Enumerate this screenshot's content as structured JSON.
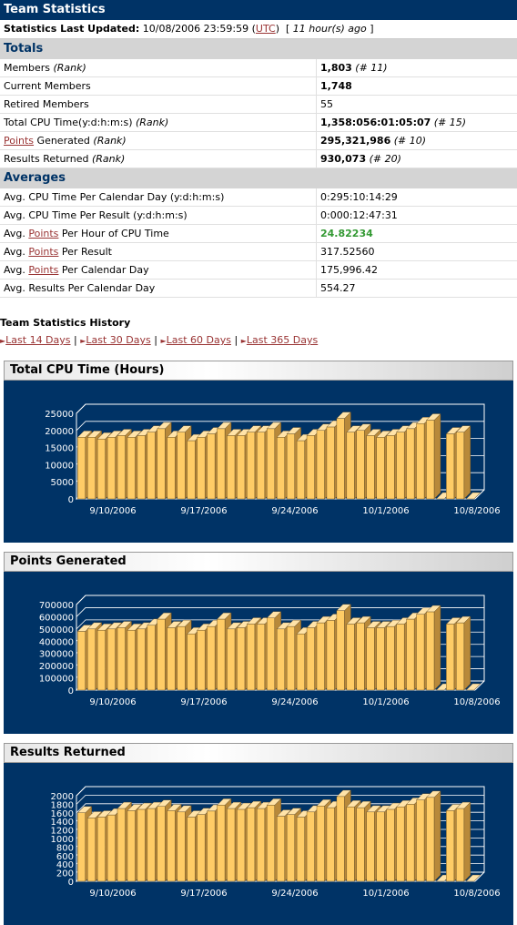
{
  "header": {
    "title": "Team Statistics"
  },
  "updated": {
    "label": "Statistics Last Updated:",
    "datetime": "10/08/2006 23:59:59",
    "tz": "UTC",
    "ago": "11 hour(s) ago"
  },
  "totals": {
    "title": "Totals",
    "rows": [
      {
        "label": "Members",
        "rank_label": "(Rank)",
        "value": "1,803",
        "rank": "(# 11)"
      },
      {
        "label": "Current Members",
        "value": "1,748"
      },
      {
        "label": "Retired Members",
        "value": "55"
      },
      {
        "label": "Total CPU Time(y:d:h:m:s)",
        "rank_label": "(Rank)",
        "value": "1,358:056:01:05:07",
        "rank": "(# 15)"
      },
      {
        "link": "Points",
        "label": "Generated",
        "rank_label": "(Rank)",
        "value": "295,321,986",
        "rank": "(# 10)"
      },
      {
        "label": "Results Returned",
        "rank_label": "(Rank)",
        "value": "930,073",
        "rank": "(# 20)"
      }
    ]
  },
  "averages": {
    "title": "Averages",
    "rows": [
      {
        "label": "Avg. CPU Time Per Calendar Day (y:d:h:m:s)",
        "value": "0:295:10:14:29"
      },
      {
        "label": "Avg. CPU Time Per Result (y:d:h:m:s)",
        "value": "0:000:12:47:31"
      },
      {
        "prefix": "Avg.",
        "link": "Points",
        "label": "Per Hour of CPU Time",
        "value": "24.82234"
      },
      {
        "prefix": "Avg.",
        "link": "Points",
        "label": "Per Result",
        "value": "317.52560"
      },
      {
        "prefix": "Avg.",
        "link": "Points",
        "label": "Per Calendar Day",
        "value": "175,996.42"
      },
      {
        "label": "Avg. Results Per Calendar Day",
        "value": "554.27"
      }
    ]
  },
  "history": {
    "title": "Team Statistics History",
    "links": [
      "Last 14 Days",
      "Last 30 Days",
      "Last 60 Days",
      "Last 365 Days"
    ],
    "separator": "|"
  },
  "colors": {
    "header": "#003366",
    "bar": "#ffcc66",
    "link": "#993333",
    "highlight": "#339933"
  },
  "chart_data": [
    {
      "type": "bar",
      "title": "Total CPU Time (Hours)",
      "xticks": [
        "9/10/2006",
        "9/17/2006",
        "9/24/2006",
        "10/1/2006",
        "10/8/2006"
      ],
      "yticks": [
        "0",
        "5000",
        "10000",
        "15000",
        "20000",
        "25000"
      ],
      "ylim": [
        0,
        25000
      ],
      "values": [
        18000,
        18000,
        17500,
        18000,
        18500,
        18000,
        18500,
        19500,
        20500,
        18000,
        19500,
        17000,
        18000,
        19000,
        20500,
        18500,
        18500,
        19500,
        19500,
        20500,
        18000,
        19000,
        17000,
        18500,
        20000,
        21000,
        23500,
        19500,
        20000,
        18500,
        18000,
        18500,
        19500,
        20500,
        22000,
        23000,
        0,
        19000,
        19500,
        0
      ],
      "grid": true
    },
    {
      "type": "bar",
      "title": "Points Generated",
      "xticks": [
        "9/10/2006",
        "9/17/2006",
        "9/24/2006",
        "10/1/2006",
        "10/8/2006"
      ],
      "yticks": [
        "0",
        "100000",
        "200000",
        "300000",
        "400000",
        "500000",
        "600000",
        "700000"
      ],
      "ylim": [
        0,
        700000
      ],
      "values": [
        480000,
        500000,
        490000,
        500000,
        510000,
        490000,
        500000,
        530000,
        580000,
        510000,
        520000,
        460000,
        490000,
        520000,
        580000,
        500000,
        510000,
        540000,
        540000,
        590000,
        500000,
        520000,
        460000,
        510000,
        550000,
        570000,
        650000,
        540000,
        550000,
        510000,
        510000,
        520000,
        540000,
        580000,
        620000,
        640000,
        0,
        540000,
        550000,
        0
      ],
      "grid": true
    },
    {
      "type": "bar",
      "title": "Results Returned",
      "xticks": [
        "9/10/2006",
        "9/17/2006",
        "9/24/2006",
        "10/1/2006",
        "10/8/2006"
      ],
      "yticks": [
        "0",
        "200",
        "400",
        "600",
        "800",
        "1000",
        "1200",
        "1400",
        "1600",
        "1800",
        "2000"
      ],
      "ylim": [
        0,
        2000
      ],
      "values": [
        1600,
        1480,
        1500,
        1550,
        1700,
        1650,
        1680,
        1700,
        1750,
        1650,
        1620,
        1500,
        1560,
        1640,
        1780,
        1700,
        1680,
        1720,
        1700,
        1780,
        1520,
        1560,
        1500,
        1620,
        1760,
        1720,
        1980,
        1740,
        1720,
        1620,
        1620,
        1680,
        1740,
        1800,
        1900,
        1960,
        0,
        1650,
        1700,
        0
      ],
      "grid": true
    }
  ]
}
